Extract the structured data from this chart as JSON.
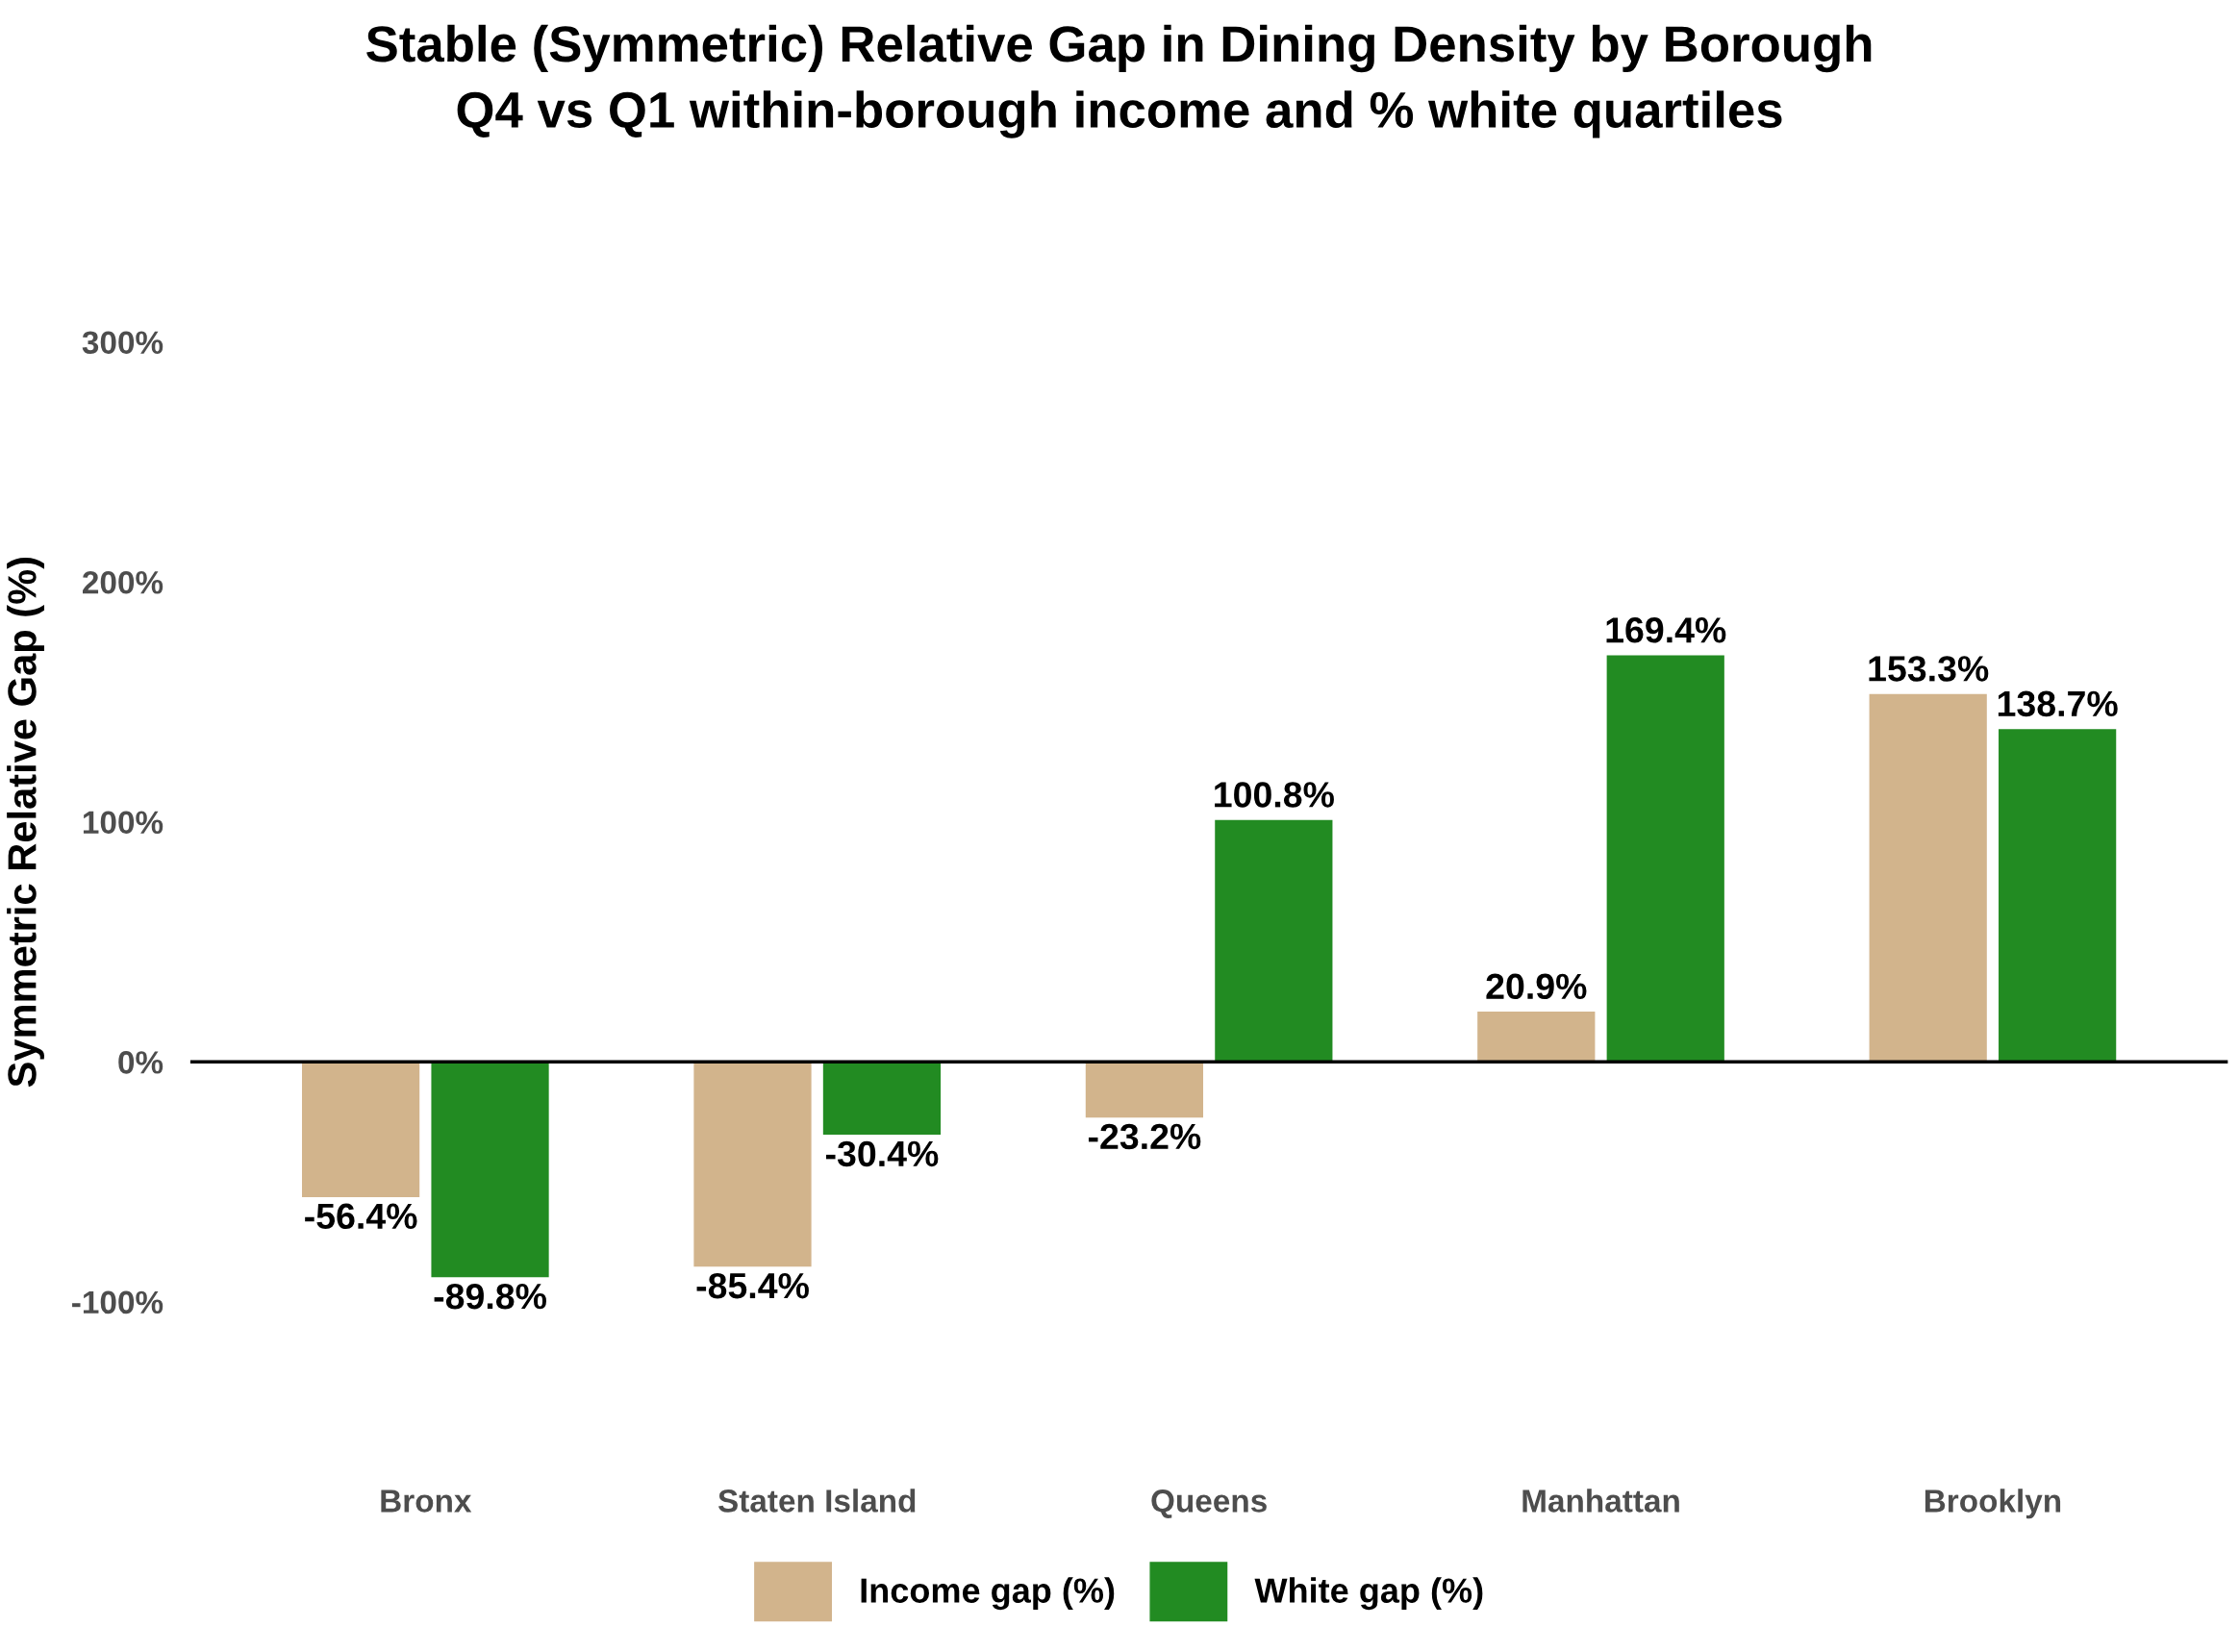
{
  "chart_data": {
    "type": "bar",
    "title": "Stable (Symmetric) Relative Gap in Dining Density by Borough\nQ4 vs Q1 within-borough income and % white quartiles",
    "ylabel": "Symmetric Relative Gap (%)",
    "categories": [
      "Bronx",
      "Staten Island",
      "Queens",
      "Manhattan",
      "Brooklyn"
    ],
    "series": [
      {
        "name": "Income gap (%)",
        "color": "#d2b48c",
        "values": [
          -56.4,
          -85.4,
          -23.2,
          20.9,
          153.3
        ],
        "value_labels": [
          "-56.4%",
          "-85.4%",
          "-23.2%",
          "20.9%",
          "153.3%"
        ]
      },
      {
        "name": "White gap (%)",
        "color": "#228b22",
        "values": [
          -89.8,
          -30.4,
          100.8,
          169.4,
          138.7
        ],
        "value_labels": [
          "-89.8%",
          "-30.4%",
          "100.8%",
          "169.4%",
          "138.7%"
        ]
      }
    ],
    "ylim": [
      -100,
      300
    ],
    "yticks": [
      {
        "value": -100,
        "label": "-100%"
      },
      {
        "value": 0,
        "label": "0%"
      },
      {
        "value": 100,
        "label": "100%"
      },
      {
        "value": 200,
        "label": "200%"
      },
      {
        "value": 300,
        "label": "300%"
      }
    ],
    "ref_lines": [
      {
        "axis": "y",
        "value": 0,
        "color": "#000000"
      }
    ],
    "grid": false,
    "legend": "bottom"
  }
}
